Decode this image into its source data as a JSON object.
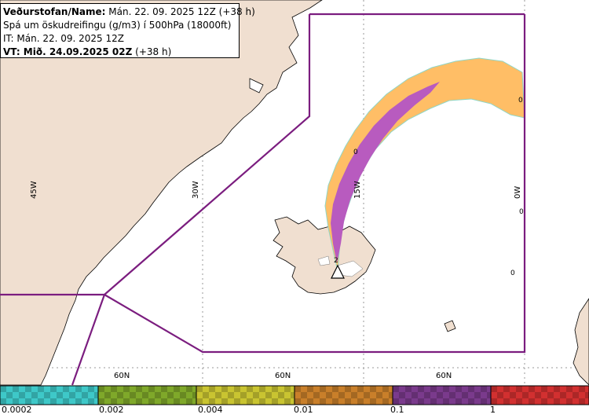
{
  "header": {
    "line1_bold": "Veðurstofan/Name:",
    "line1_rest": " Mán. 22. 09. 2025 12Z (+38 h)",
    "line2": "Spá um öskudreifingu (g/m3) í 500hPa (18000ft)",
    "line3": "IT: Mán. 22. 09. 2025 12Z",
    "line4_bold": "VT: Mið. 24.09.2025 02Z",
    "line4_rest": " (+38 h)"
  },
  "grid_labels": {
    "lon_45w": "45W",
    "lon_30w": "30W",
    "lon_15w": "15W",
    "lon_0w": "0W",
    "lat_a": "60N",
    "lat_b": "60N",
    "lat_c": "60N"
  },
  "spot_values": [
    "0",
    "0",
    "0",
    "0",
    "2"
  ],
  "legend": {
    "labels": [
      "0.0002",
      "0.002",
      "0.004",
      "0.01",
      "0.1",
      "1"
    ],
    "colors": [
      "#3ec8c8",
      "#7fa82a",
      "#c9c431",
      "#c97f2a",
      "#7a3a8c",
      "#d23030"
    ]
  },
  "colors": {
    "land": "#f0dfd0",
    "sea": "#ffffff",
    "boundary": "#7b1d7f",
    "ash_light": "#ffbe66",
    "ash_heavy": "#b85bbf"
  }
}
